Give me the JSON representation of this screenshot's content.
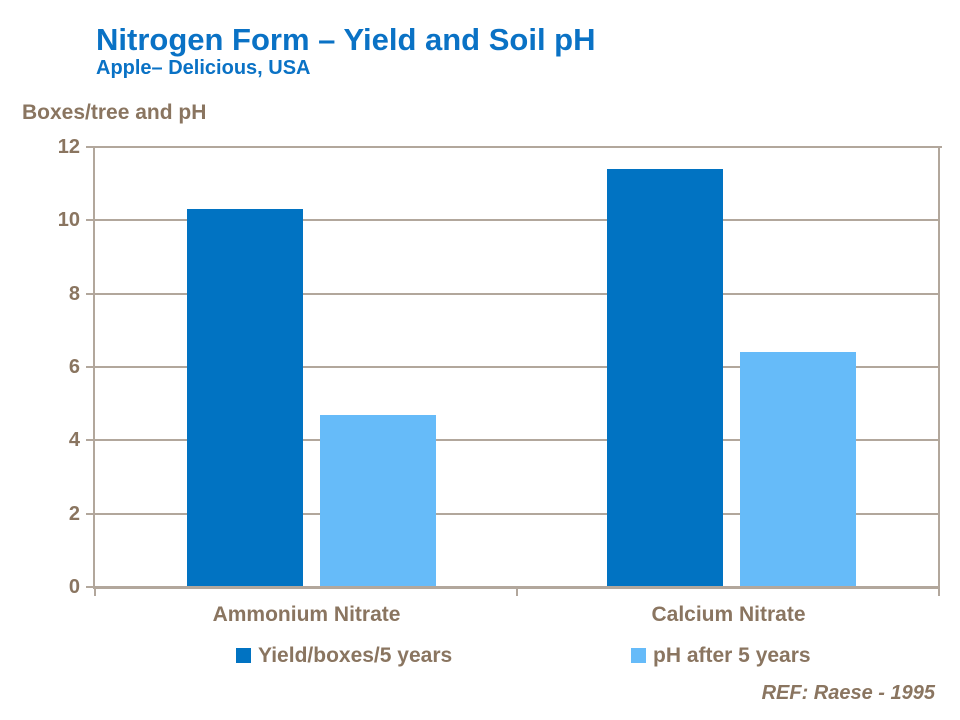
{
  "header": {
    "title": "Nitrogen Form – Yield and Soil pH",
    "subtitle": "Apple– Delicious, USA"
  },
  "footer": {
    "ref": "REF: Raese - 1995"
  },
  "theme": {
    "title_color": "#0A72C5",
    "text_color": "#8A7560",
    "line_color": "#B2A79C",
    "background": "#FFFFFF"
  },
  "chart_data": {
    "type": "bar",
    "title": "Nitrogen Form – Yield and Soil pH",
    "subtitle": "Apple– Delicious, USA",
    "ylabel": "Boxes/tree and pH",
    "xlabel": "",
    "categories": [
      "Ammonium Nitrate",
      "Calcium Nitrate"
    ],
    "series": [
      {
        "name": "Yield/boxes/5 years",
        "color": "#0173C2",
        "values": [
          10.3,
          11.4
        ]
      },
      {
        "name": "pH after 5 years",
        "color": "#66BBF9",
        "values": [
          4.7,
          6.4
        ]
      }
    ],
    "ylim": [
      0,
      12
    ],
    "yticks": [
      0,
      2,
      4,
      6,
      8,
      10,
      12
    ],
    "grid": true,
    "legend_position": "bottom",
    "annotation": "REF: Raese - 1995"
  }
}
